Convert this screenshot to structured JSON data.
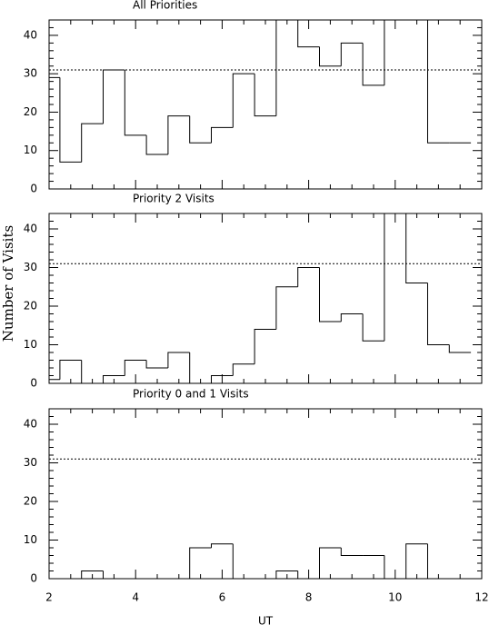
{
  "chart_data": [
    {
      "type": "histogram",
      "title": "All Priorities",
      "bins": [
        1.75,
        2.25,
        2.75,
        3.25,
        3.75,
        4.25,
        4.75,
        5.25,
        5.75,
        6.25,
        6.75,
        7.25,
        7.75,
        8.25,
        8.75,
        9.25,
        9.75,
        10.25,
        10.75,
        11.25,
        11.75
      ],
      "values": [
        29,
        7,
        17,
        31,
        14,
        9,
        19,
        12,
        16,
        30,
        19,
        46,
        37,
        32,
        38,
        27,
        46,
        46,
        12,
        12
      ],
      "xlim": [
        2,
        12
      ],
      "ylim": [
        0,
        44
      ],
      "xticks": [
        2,
        4,
        6,
        8,
        10,
        12
      ],
      "yticks": [
        0,
        10,
        20,
        30,
        40
      ],
      "hline": 31
    },
    {
      "type": "histogram",
      "title": "Priority 2 Visits",
      "ylabel": "Number of Visits",
      "bins": [
        1.75,
        2.25,
        2.75,
        3.25,
        3.75,
        4.25,
        4.75,
        5.25,
        5.75,
        6.25,
        6.75,
        7.25,
        7.75,
        8.25,
        8.75,
        9.25,
        9.75,
        10.25,
        10.75,
        11.25,
        11.75
      ],
      "values": [
        1,
        6,
        0,
        2,
        6,
        4,
        8,
        0,
        2,
        5,
        14,
        25,
        30,
        16,
        18,
        11,
        46,
        26,
        10,
        8
      ],
      "xlim": [
        2,
        12
      ],
      "ylim": [
        0,
        44
      ],
      "xticks": [
        2,
        4,
        6,
        8,
        10,
        12
      ],
      "yticks": [
        0,
        10,
        20,
        30,
        40
      ],
      "hline": 31
    },
    {
      "type": "histogram",
      "title": "Priority 0 and 1 Visits",
      "xlabel": "UT",
      "bins": [
        1.75,
        2.25,
        2.75,
        3.25,
        3.75,
        4.25,
        4.75,
        5.25,
        5.75,
        6.25,
        6.75,
        7.25,
        7.75,
        8.25,
        8.75,
        9.25,
        9.75,
        10.25,
        10.75,
        11.25,
        11.75
      ],
      "values": [
        0,
        0,
        2,
        0,
        0,
        0,
        0,
        8,
        9,
        0,
        0,
        2,
        0,
        8,
        6,
        6,
        0,
        9,
        0,
        0
      ],
      "xlim": [
        2,
        12
      ],
      "ylim": [
        0,
        44
      ],
      "xticks": [
        2,
        4,
        6,
        8,
        10,
        12
      ],
      "yticks": [
        0,
        10,
        20,
        30,
        40
      ],
      "hline": 31
    }
  ]
}
